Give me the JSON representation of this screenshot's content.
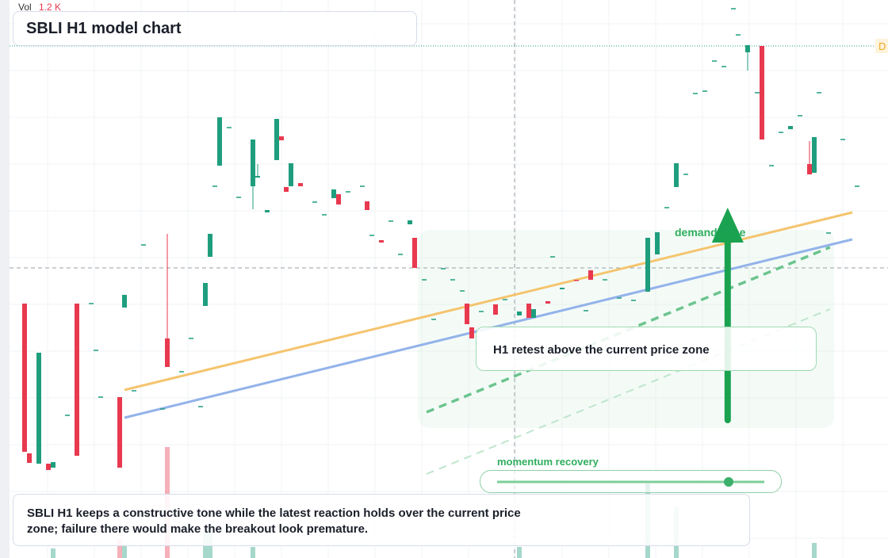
{
  "chart_data": {
    "type": "candlestick",
    "title": "SBLI H1 model chart",
    "volume_label": "Vol",
    "volume_value_label": "1.2 K",
    "xlim": [
      0,
      180
    ],
    "ylim": [
      0,
      70.4
    ],
    "up_color": "#1f9e7e",
    "down_color": "#e8394f",
    "x": [
      2,
      3,
      5,
      7,
      8,
      11,
      13,
      16,
      17,
      18,
      22,
      23,
      25,
      27,
      31,
      32,
      35,
      37,
      39,
      40,
      41,
      42,
      43,
      45,
      47,
      50,
      51,
      53,
      55,
      56,
      57,
      58,
      60,
      63,
      65,
      67,
      68,
      70,
      73,
      74,
      75,
      77,
      79,
      81,
      83,
      84,
      86,
      88,
      90,
      92,
      94,
      95,
      96,
      98,
      101,
      103,
      106,
      108,
      109,
      112,
      113,
      115,
      118,
      120,
      121,
      124,
      127,
      130,
      133,
      135,
      137,
      139,
      141,
      143,
      145,
      147,
      149,
      151,
      152,
      154,
      156,
      157,
      159,
      161,
      163,
      165,
      167,
      168,
      169,
      171,
      174,
      177
    ],
    "open": [
      32.1,
      13.2,
      11.9,
      11.9,
      11.4,
      18.0,
      32.1,
      32.1,
      26.2,
      20.3,
      20.3,
      31.6,
      21.1,
      39.5,
      18.8,
      27.7,
      23.5,
      27.7,
      19.1,
      31.8,
      38.0,
      46.9,
      49.5,
      54.3,
      45.5,
      46.9,
      48.0,
      43.6,
      50.2,
      53.2,
      46.8,
      46.9,
      47.3,
      44.9,
      43.3,
      45.4,
      45.9,
      46.2,
      46.9,
      45.0,
      40.7,
      40.1,
      42.5,
      38.3,
      42.1,
      40.4,
      35.1,
      30.1,
      36.5,
      35.1,
      33.7,
      32.1,
      29.1,
      31.1,
      32.0,
      32.6,
      30.6,
      32.1,
      30.3,
      32.4,
      38.0,
      33.9,
      35.1,
      31.2,
      36.3,
      35.1,
      32.8,
      32.5,
      33.6,
      38.3,
      44.2,
      46.8,
      48.4,
      58.6,
      58.9,
      62.7,
      62.0,
      69.3,
      66.0,
      63.8,
      58.7,
      64.6,
      49.5,
      53.7,
      54.1,
      55.8,
      49.7,
      48.6,
      58.7,
      41.0,
      52.8,
      46.9
    ],
    "high": [
      32.1,
      13.2,
      25.9,
      11.9,
      12.1,
      18.0,
      32.1,
      32.1,
      26.2,
      20.3,
      20.3,
      33.2,
      21.1,
      39.5,
      18.8,
      40.9,
      23.5,
      27.7,
      19.1,
      34.7,
      40.9,
      46.9,
      55.6,
      54.3,
      45.5,
      52.8,
      49.7,
      43.9,
      55.4,
      53.2,
      46.8,
      49.8,
      47.3,
      44.9,
      43.3,
      46.5,
      45.9,
      46.2,
      46.9,
      45.0,
      40.7,
      40.1,
      42.5,
      38.3,
      42.6,
      40.4,
      35.1,
      30.1,
      36.5,
      35.1,
      33.7,
      32.1,
      29.1,
      31.1,
      32.0,
      32.6,
      31.1,
      32.1,
      31.4,
      32.4,
      38.0,
      34.1,
      35.1,
      31.2,
      36.3,
      35.1,
      32.8,
      32.5,
      40.4,
      41.1,
      44.2,
      49.8,
      48.4,
      58.6,
      58.9,
      62.7,
      62.0,
      69.3,
      66.0,
      64.7,
      58.7,
      64.6,
      49.5,
      53.7,
      54.5,
      55.8,
      52.6,
      53.1,
      58.7,
      41.0,
      52.8,
      46.9
    ],
    "low": [
      13.4,
      12.0,
      11.9,
      11.1,
      11.4,
      18.0,
      12.9,
      32.1,
      26.2,
      20.3,
      11.4,
      31.6,
      21.1,
      39.5,
      18.8,
      24.1,
      23.5,
      27.7,
      19.1,
      31.8,
      38.0,
      46.9,
      49.5,
      54.3,
      45.5,
      44.0,
      48.0,
      43.6,
      50.2,
      52.7,
      46.2,
      46.9,
      46.9,
      44.9,
      43.3,
      45.4,
      44.6,
      46.2,
      46.9,
      43.9,
      40.7,
      39.8,
      42.5,
      38.3,
      42.1,
      36.6,
      35.1,
      30.1,
      36.5,
      35.1,
      33.7,
      29.5,
      27.7,
      31.1,
      30.7,
      32.6,
      30.6,
      30.3,
      30.3,
      32.1,
      38.0,
      33.9,
      35.0,
      31.2,
      35.1,
      35.1,
      32.8,
      32.5,
      33.6,
      38.3,
      44.2,
      46.8,
      48.4,
      58.6,
      58.9,
      62.7,
      62.0,
      69.3,
      66.0,
      61.5,
      58.7,
      52.8,
      49.5,
      53.7,
      54.1,
      55.8,
      48.4,
      48.6,
      58.7,
      41.0,
      52.8,
      46.9
    ],
    "close": [
      13.4,
      12.0,
      25.9,
      11.1,
      12.1,
      18.0,
      12.9,
      32.1,
      26.2,
      20.3,
      11.4,
      33.2,
      21.1,
      39.5,
      18.8,
      24.1,
      23.5,
      27.7,
      19.1,
      34.7,
      40.9,
      46.9,
      55.6,
      54.3,
      45.5,
      52.8,
      48.2,
      43.9,
      55.4,
      52.7,
      46.2,
      49.8,
      46.9,
      44.9,
      43.3,
      46.5,
      44.6,
      46.2,
      46.9,
      43.9,
      40.7,
      39.8,
      42.5,
      38.3,
      42.6,
      36.6,
      35.1,
      30.1,
      36.5,
      35.1,
      33.7,
      29.5,
      27.7,
      31.1,
      30.7,
      32.6,
      31.1,
      30.3,
      31.4,
      32.1,
      38.0,
      34.1,
      35.0,
      31.2,
      35.1,
      35.1,
      32.8,
      32.5,
      40.4,
      41.1,
      44.2,
      49.8,
      48.4,
      58.6,
      58.9,
      62.7,
      62.0,
      69.3,
      66.0,
      64.7,
      58.7,
      52.8,
      49.5,
      53.7,
      54.5,
      55.8,
      48.4,
      53.1,
      58.7,
      41.0,
      52.8,
      46.9
    ],
    "volume": {
      "x": [
        8,
        22,
        23,
        32,
        40,
        41,
        50,
        106,
        133,
        139,
        168
      ],
      "values": [
        1.2,
        2.4,
        1.5,
        14.0,
        3.4,
        3.4,
        1.4,
        1.4,
        9.4,
        6.4,
        1.9
      ],
      "colors": [
        "#1f9e7e",
        "#e8394f",
        "#1f9e7e",
        "#e8394f",
        "#1f9e7e",
        "#1f9e7e",
        "#1f9e7e",
        "#1f9e7e",
        "#1f9e7e",
        "#1f9e7e",
        "#1f9e7e"
      ],
      "vol_lim": [
        0,
        70.4
      ]
    },
    "trendlines": [
      {
        "x": [
          23,
          176
        ],
        "y": [
          21.2,
          43.6
        ],
        "color": "#f5c46e",
        "dashed": false,
        "width": 3
      },
      {
        "x": [
          23,
          176
        ],
        "y": [
          17.7,
          40.2
        ],
        "color": "#93b3ea",
        "dashed": false,
        "width": 3
      },
      {
        "x": [
          86.5,
          171.3
        ],
        "y": [
          18.4,
          39.2
        ],
        "color": "#6cc48e",
        "dashed": true,
        "width": 3.5
      },
      {
        "x": [
          86.5,
          171.3
        ],
        "y": [
          10.6,
          31.4
        ],
        "color": "#bfe6cc",
        "dashed": true,
        "width": 2
      }
    ],
    "last_price": {
      "y": 64.6,
      "label": "D",
      "color": "#f5a623"
    },
    "crosshair": {
      "x": 105,
      "y": 36.6
    },
    "zone": {
      "label": "demand zone",
      "x": [
        84.7,
        172.2
      ],
      "y": [
        16.4,
        41.4
      ]
    },
    "arrow": {
      "x": 149.8,
      "y": [
        17.4,
        44.2
      ],
      "color": "#1aa251"
    },
    "retest_note": "H1 retest above the current price zone",
    "momentum_label": "momentum recovery",
    "caption": "SBLI H1 keeps a constructive tone while the latest reaction holds over the current price zone; failure there would make the breakout look premature."
  }
}
